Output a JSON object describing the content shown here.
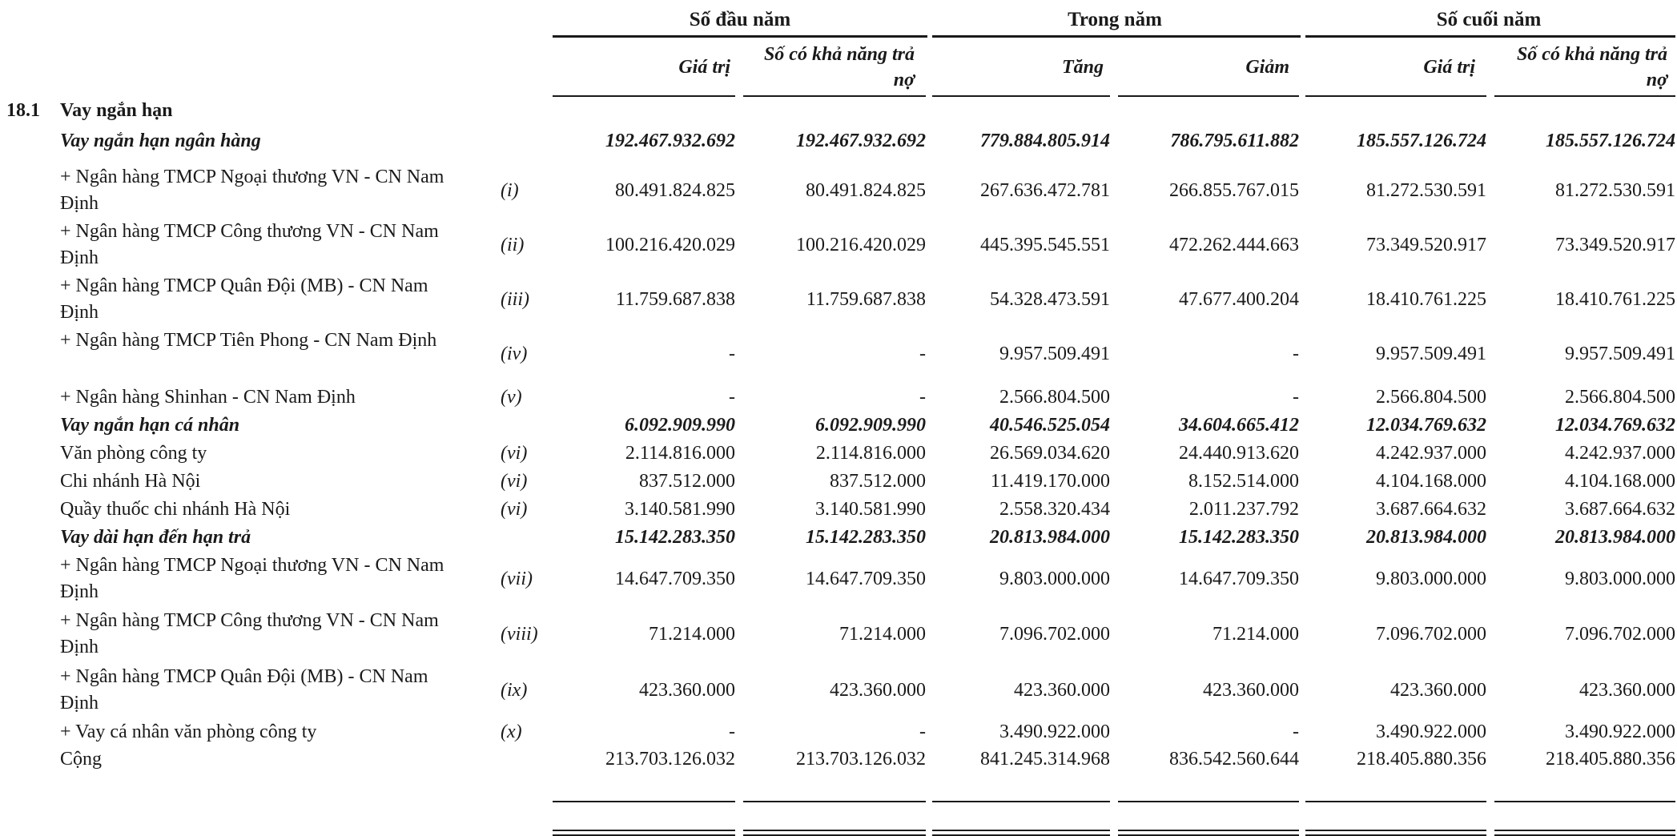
{
  "header": {
    "groups": [
      "Số đầu năm",
      "Trong năm",
      "Số cuối năm"
    ],
    "columns": [
      "Giá trị",
      "Số có khả năng trả nợ",
      "Tăng",
      "Giảm",
      "Giá trị",
      "Số có khả năng trả nợ"
    ]
  },
  "section": {
    "number": "18.1",
    "title": "Vay ngắn hạn"
  },
  "rows": [
    {
      "type": "sub",
      "label": "Vay ngắn hạn ngân hàng",
      "note": "",
      "values": [
        "192.467.932.692",
        "192.467.932.692",
        "779.884.805.914",
        "786.795.611.882",
        "185.557.126.724",
        "185.557.126.724"
      ]
    },
    {
      "type": "item",
      "label": "+ Ngân hàng TMCP Ngoại thương VN - CN Nam Định",
      "note": "(i)",
      "values": [
        "80.491.824.825",
        "80.491.824.825",
        "267.636.472.781",
        "266.855.767.015",
        "81.272.530.591",
        "81.272.530.591"
      ]
    },
    {
      "type": "item",
      "label": "+ Ngân hàng TMCP Công thương VN - CN Nam Định",
      "note": "(ii)",
      "values": [
        "100.216.420.029",
        "100.216.420.029",
        "445.395.545.551",
        "472.262.444.663",
        "73.349.520.917",
        "73.349.520.917"
      ]
    },
    {
      "type": "item",
      "label": "+ Ngân hàng TMCP Quân Đội (MB) - CN Nam Định",
      "note": "(iii)",
      "values": [
        "11.759.687.838",
        "11.759.687.838",
        "54.328.473.591",
        "47.677.400.204",
        "18.410.761.225",
        "18.410.761.225"
      ]
    },
    {
      "type": "item",
      "label": "+ Ngân hàng TMCP Tiên Phong - CN Nam Định",
      "note": "(iv)",
      "values": [
        "-",
        "-",
        "9.957.509.491",
        "-",
        "9.957.509.491",
        "9.957.509.491"
      ]
    },
    {
      "type": "item1",
      "label": "+ Ngân hàng Shinhan - CN Nam Định",
      "note": "(v)",
      "values": [
        "-",
        "-",
        "2.566.804.500",
        "-",
        "2.566.804.500",
        "2.566.804.500"
      ]
    },
    {
      "type": "sub",
      "label": "Vay ngắn hạn cá nhân",
      "note": "",
      "values": [
        "6.092.909.990",
        "6.092.909.990",
        "40.546.525.054",
        "34.604.665.412",
        "12.034.769.632",
        "12.034.769.632"
      ]
    },
    {
      "type": "item1",
      "label": "Văn phòng công ty",
      "note": "(vi)",
      "values": [
        "2.114.816.000",
        "2.114.816.000",
        "26.569.034.620",
        "24.440.913.620",
        "4.242.937.000",
        "4.242.937.000"
      ]
    },
    {
      "type": "item1",
      "label": "Chi nhánh Hà Nội",
      "note": "(vi)",
      "values": [
        "837.512.000",
        "837.512.000",
        "11.419.170.000",
        "8.152.514.000",
        "4.104.168.000",
        "4.104.168.000"
      ]
    },
    {
      "type": "item1",
      "label": "Quầy thuốc chi nhánh Hà Nội",
      "note": "(vi)",
      "values": [
        "3.140.581.990",
        "3.140.581.990",
        "2.558.320.434",
        "2.011.237.792",
        "3.687.664.632",
        "3.687.664.632"
      ]
    },
    {
      "type": "sub",
      "label": "Vay dài hạn đến hạn trả",
      "note": "",
      "values": [
        "15.142.283.350",
        "15.142.283.350",
        "20.813.984.000",
        "15.142.283.350",
        "20.813.984.000",
        "20.813.984.000"
      ]
    },
    {
      "type": "item",
      "label": "+ Ngân hàng TMCP Ngoại thương VN - CN Nam Định",
      "note": "(vii)",
      "values": [
        "14.647.709.350",
        "14.647.709.350",
        "9.803.000.000",
        "14.647.709.350",
        "9.803.000.000",
        "9.803.000.000"
      ]
    },
    {
      "type": "item",
      "label": "+ Ngân hàng TMCP Công thương VN - CN Nam Định",
      "note": "(viii)",
      "values": [
        "71.214.000",
        "71.214.000",
        "7.096.702.000",
        "71.214.000",
        "7.096.702.000",
        "7.096.702.000"
      ]
    },
    {
      "type": "item",
      "label": "+ Ngân hàng TMCP Quân Đội (MB) - CN Nam Định",
      "note": "(ix)",
      "values": [
        "423.360.000",
        "423.360.000",
        "423.360.000",
        "423.360.000",
        "423.360.000",
        "423.360.000"
      ]
    },
    {
      "type": "item1",
      "label": "+ Vay cá nhân văn phòng công ty",
      "note": "(x)",
      "values": [
        "-",
        "-",
        "3.490.922.000",
        "-",
        "3.490.922.000",
        "3.490.922.000"
      ]
    },
    {
      "type": "total",
      "label": "Cộng",
      "note": "",
      "values": [
        "213.703.126.032",
        "213.703.126.032",
        "841.245.314.968",
        "836.542.560.644",
        "218.405.880.356",
        "218.405.880.356"
      ]
    }
  ]
}
